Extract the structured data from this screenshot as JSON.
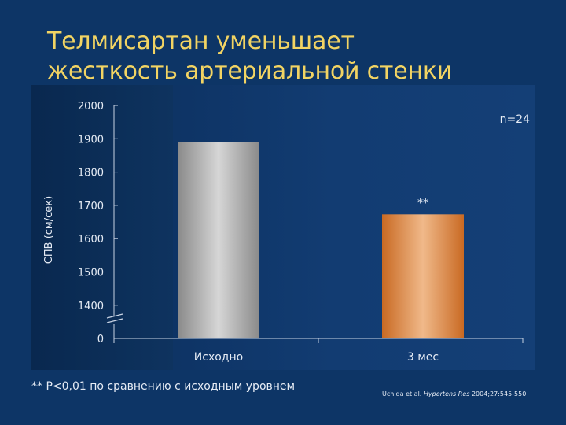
{
  "slide": {
    "title_line1": "Телмисартан уменьшает",
    "title_line2": "жесткость артериальной стенки",
    "footnote": "** P<0,01 по сравнению с исходным уровнем",
    "citation_authors": "Uchida et al. ",
    "citation_journal": "Hypertens Res",
    "citation_rest": " 2004;27:545-550"
  },
  "chart_data": {
    "type": "bar",
    "title": "",
    "ylabel": "СПВ (см/сек)",
    "xlabel": "",
    "categories": [
      "Исходно",
      "3 мес"
    ],
    "values": [
      1890,
      1673
    ],
    "yticks": [
      "2000",
      "1900",
      "1800",
      "1700",
      "1600",
      "1500",
      "1400",
      "0"
    ],
    "ylim": [
      1300,
      2000
    ],
    "axis_break": true,
    "annotations": {
      "sample_size": "n=24",
      "significance": "**"
    },
    "bar_colors": {
      "baseline": [
        "#8a8a8a",
        "#d6d6d6"
      ],
      "followup": [
        "#c96a23",
        "#f0b98a"
      ]
    },
    "grid": false
  }
}
